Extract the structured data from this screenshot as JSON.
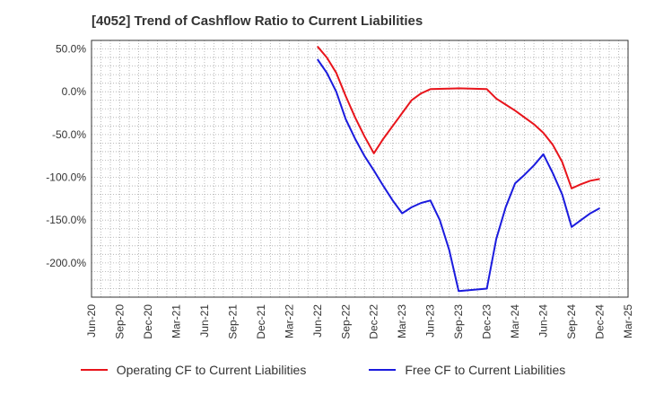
{
  "chart_data": {
    "type": "line",
    "title": "[4052]  Trend of Cashflow Ratio to Current Liabilities",
    "x_tick_labels": [
      "Jun-20",
      "Sep-20",
      "Dec-20",
      "Mar-21",
      "Jun-21",
      "Sep-21",
      "Dec-21",
      "Mar-22",
      "Jun-22",
      "Sep-22",
      "Dec-22",
      "Mar-23",
      "Jun-23",
      "Sep-23",
      "Dec-23",
      "Mar-24",
      "Jun-24",
      "Sep-24",
      "Dec-24",
      "Mar-25"
    ],
    "y_ticks": [
      50,
      0,
      -50,
      -100,
      -150,
      -200
    ],
    "y_tick_labels": [
      "50.0%",
      "0.0%",
      "-50.0%",
      "-100.0%",
      "-150.0%",
      "-200.0%"
    ],
    "ylim": [
      -240,
      60
    ],
    "grid": true,
    "legend_position": "bottom",
    "series": [
      {
        "name": "Operating CF to Current Liabilities",
        "color": "#e8141b",
        "points": [
          [
            "Jun-22",
            53
          ],
          [
            "Jul-22",
            40
          ],
          [
            "Aug-22",
            22
          ],
          [
            "Sep-22",
            -5
          ],
          [
            "Oct-22",
            -30
          ],
          [
            "Nov-22",
            -52
          ],
          [
            "Dec-22",
            -72
          ],
          [
            "Jan-23",
            -55
          ],
          [
            "Feb-23",
            -40
          ],
          [
            "Mar-23",
            -25
          ],
          [
            "Apr-23",
            -10
          ],
          [
            "May-23",
            -2
          ],
          [
            "Jun-23",
            3
          ],
          [
            "Sep-23",
            4
          ],
          [
            "Dec-23",
            3
          ],
          [
            "Jan-24",
            -8
          ],
          [
            "Feb-24",
            -15
          ],
          [
            "Mar-24",
            -22
          ],
          [
            "Apr-24",
            -30
          ],
          [
            "May-24",
            -38
          ],
          [
            "Jun-24",
            -48
          ],
          [
            "Jul-24",
            -62
          ],
          [
            "Aug-24",
            -82
          ],
          [
            "Sep-24",
            -113
          ],
          [
            "Oct-24",
            -108
          ],
          [
            "Nov-24",
            -104
          ],
          [
            "Dec-24",
            -102
          ]
        ]
      },
      {
        "name": "Free CF to Current Liabilities",
        "color": "#1b1bde",
        "points": [
          [
            "Jun-22",
            38
          ],
          [
            "Jul-22",
            22
          ],
          [
            "Aug-22",
            0
          ],
          [
            "Sep-22",
            -32
          ],
          [
            "Oct-22",
            -55
          ],
          [
            "Nov-22",
            -75
          ],
          [
            "Dec-22",
            -92
          ],
          [
            "Jan-23",
            -110
          ],
          [
            "Feb-23",
            -127
          ],
          [
            "Mar-23",
            -142
          ],
          [
            "Apr-23",
            -135
          ],
          [
            "May-23",
            -130
          ],
          [
            "Jun-23",
            -127
          ],
          [
            "Jul-23",
            -150
          ],
          [
            "Aug-23",
            -185
          ],
          [
            "Sep-23",
            -233
          ],
          [
            "Dec-23",
            -230
          ],
          [
            "Jan-24",
            -172
          ],
          [
            "Feb-24",
            -135
          ],
          [
            "Mar-24",
            -107
          ],
          [
            "Apr-24",
            -97
          ],
          [
            "May-24",
            -86
          ],
          [
            "Jun-24",
            -73
          ],
          [
            "Jul-24",
            -95
          ],
          [
            "Aug-24",
            -120
          ],
          [
            "Sep-24",
            -158
          ],
          [
            "Oct-24",
            -150
          ],
          [
            "Nov-24",
            -142
          ],
          [
            "Dec-24",
            -136
          ]
        ]
      }
    ]
  }
}
